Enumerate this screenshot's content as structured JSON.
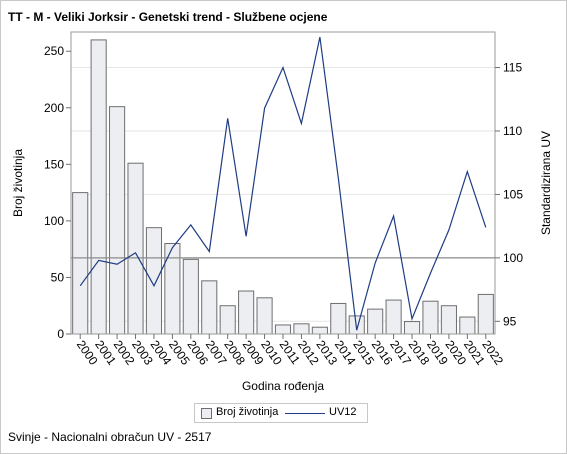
{
  "title": "TT - M - Veliki Jorksir - Genetski trend - Službene ocjene",
  "footer": "Svinje - Nacionalni obračun UV - 2517",
  "chart_data": {
    "type": "bar",
    "categories": [
      "2000",
      "2001",
      "2002",
      "2003",
      "2004",
      "2005",
      "2006",
      "2007",
      "2008",
      "2009",
      "2010",
      "2011",
      "2012",
      "2013",
      "2014",
      "2015",
      "2016",
      "2017",
      "2018",
      "2019",
      "2020",
      "2021",
      "2022"
    ],
    "series": [
      {
        "name": "Broj životinja",
        "type": "bar",
        "axis": "left",
        "values": [
          125,
          260,
          201,
          151,
          94,
          80,
          66,
          47,
          25,
          38,
          32,
          8,
          9,
          6,
          27,
          16,
          22,
          30,
          11,
          29,
          25,
          15,
          35
        ]
      },
      {
        "name": "UV12",
        "type": "line",
        "axis": "right",
        "values": [
          97.8,
          99.8,
          99.5,
          100.4,
          97.8,
          100.8,
          102.6,
          100.5,
          111.0,
          101.7,
          111.8,
          115.0,
          110.6,
          117.4,
          106.3,
          94.3,
          99.6,
          103.3,
          95.2,
          98.8,
          102.2,
          106.8,
          102.4
        ]
      }
    ],
    "xlabel": "Godina rođenja",
    "ylabel": "Broj životinja",
    "y2label": "Standardizirana UV",
    "ylim": [
      0,
      267
    ],
    "y2lim": [
      94.0,
      117.8
    ],
    "yticks": [
      0,
      50,
      100,
      150,
      200,
      250
    ],
    "y2ticks": [
      95,
      100,
      105,
      110,
      115
    ],
    "reference_line_y2": 100,
    "colors": {
      "bar_fill": "#eceef2",
      "bar_stroke": "#6e6e6e",
      "line": "#1f3c84",
      "ref_line": "#8c8c8c",
      "grid": "#e6e6e6"
    },
    "legend": [
      "Broj životinja",
      "UV12"
    ],
    "legend_position": "bottom-center"
  }
}
